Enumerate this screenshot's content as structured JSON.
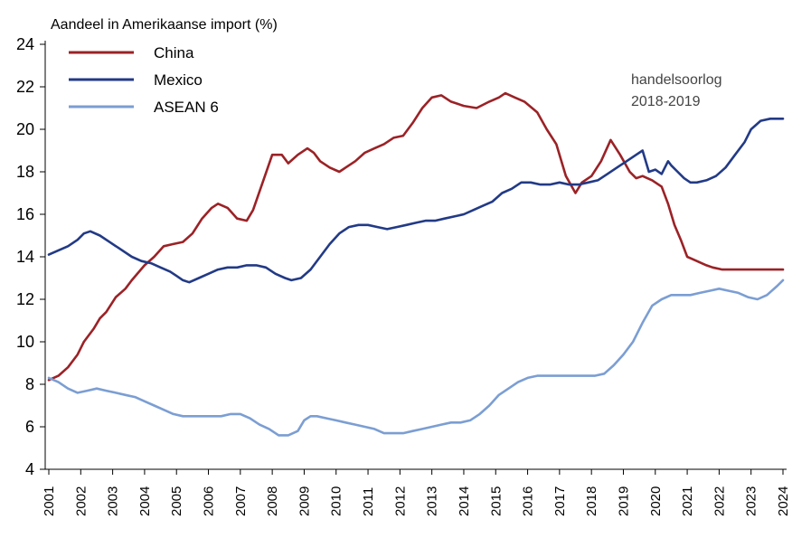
{
  "chart_data": {
    "type": "line",
    "title": "",
    "ylabel": "Aandeel in Amerikaanse import (%)",
    "xlabel": "",
    "ylim": [
      4,
      24
    ],
    "xlim": [
      2001,
      2024
    ],
    "yticks": [
      4,
      6,
      8,
      10,
      12,
      14,
      16,
      18,
      20,
      22,
      24
    ],
    "xticks": [
      "2001",
      "2002",
      "2003",
      "2004",
      "2005",
      "2006",
      "2007",
      "2008",
      "2009",
      "2010",
      "2011",
      "2012",
      "2013",
      "2014",
      "2015",
      "2016",
      "2017",
      "2018",
      "2019",
      "2020",
      "2021",
      "2022",
      "2023",
      "2024"
    ],
    "legend_position": "top-left",
    "grid": false,
    "annotation": [
      "handelsoorlog",
      "2018-2019"
    ],
    "series": [
      {
        "name": "China",
        "color": "#9b2226",
        "x": [
          2001.0,
          2001.3,
          2001.6,
          2001.9,
          2002.1,
          2002.4,
          2002.6,
          2002.8,
          2003.1,
          2003.4,
          2003.6,
          2004.0,
          2004.3,
          2004.6,
          2004.9,
          2005.2,
          2005.5,
          2005.8,
          2006.1,
          2006.3,
          2006.6,
          2006.9,
          2007.2,
          2007.4,
          2007.7,
          2008.0,
          2008.3,
          2008.5,
          2008.8,
          2009.1,
          2009.3,
          2009.5,
          2009.8,
          2010.1,
          2010.3,
          2010.6,
          2010.9,
          2011.2,
          2011.5,
          2011.8,
          2012.1,
          2012.4,
          2012.7,
          2013.0,
          2013.3,
          2013.6,
          2014.0,
          2014.4,
          2014.8,
          2015.1,
          2015.3,
          2015.6,
          2015.9,
          2016.3,
          2016.6,
          2016.9,
          2017.2,
          2017.5,
          2017.7,
          2018.0,
          2018.3,
          2018.6,
          2018.9,
          2019.2,
          2019.4,
          2019.6,
          2019.9,
          2020.2,
          2020.4,
          2020.6,
          2020.8,
          2021.0,
          2021.3,
          2021.6,
          2021.8,
          2022.1,
          2022.4,
          2022.7,
          2023.0,
          2023.3,
          2023.6,
          2023.9,
          2024.0
        ],
        "values": [
          8.2,
          8.4,
          8.8,
          9.4,
          10.0,
          10.6,
          11.1,
          11.4,
          12.1,
          12.5,
          12.9,
          13.6,
          14.0,
          14.5,
          14.6,
          14.7,
          15.1,
          15.8,
          16.3,
          16.5,
          16.3,
          15.8,
          15.7,
          16.2,
          17.5,
          18.8,
          18.8,
          18.4,
          18.8,
          19.1,
          18.9,
          18.5,
          18.2,
          18.0,
          18.2,
          18.5,
          18.9,
          19.1,
          19.3,
          19.6,
          19.7,
          20.3,
          21.0,
          21.5,
          21.6,
          21.3,
          21.1,
          21.0,
          21.3,
          21.5,
          21.7,
          21.5,
          21.3,
          20.8,
          20.0,
          19.3,
          17.8,
          17.0,
          17.5,
          17.8,
          18.5,
          19.5,
          18.8,
          18.0,
          17.7,
          17.8,
          17.6,
          17.3,
          16.5,
          15.5,
          14.8,
          14.0,
          13.8,
          13.6,
          13.5,
          13.4,
          13.4,
          13.4,
          13.4,
          13.4,
          13.4,
          13.4,
          13.4
        ]
      },
      {
        "name": "Mexico",
        "color": "#223a86",
        "x": [
          2001.0,
          2001.3,
          2001.6,
          2001.9,
          2002.1,
          2002.3,
          2002.6,
          2002.9,
          2003.2,
          2003.6,
          2003.9,
          2004.2,
          2004.5,
          2004.8,
          2005.0,
          2005.2,
          2005.4,
          2005.7,
          2006.0,
          2006.3,
          2006.6,
          2006.9,
          2007.2,
          2007.5,
          2007.8,
          2008.1,
          2008.4,
          2008.6,
          2008.9,
          2009.2,
          2009.5,
          2009.8,
          2010.1,
          2010.4,
          2010.7,
          2011.0,
          2011.3,
          2011.6,
          2011.9,
          2012.2,
          2012.5,
          2012.8,
          2013.1,
          2013.4,
          2013.7,
          2014.0,
          2014.3,
          2014.6,
          2014.9,
          2015.2,
          2015.5,
          2015.8,
          2016.1,
          2016.4,
          2016.7,
          2017.0,
          2017.3,
          2017.6,
          2017.9,
          2018.2,
          2018.5,
          2018.8,
          2019.1,
          2019.4,
          2019.6,
          2019.8,
          2020.0,
          2020.2,
          2020.4,
          2020.5,
          2020.7,
          2020.9,
          2021.1,
          2021.3,
          2021.6,
          2021.9,
          2022.2,
          2022.5,
          2022.8,
          2023.0,
          2023.3,
          2023.6,
          2023.9,
          2024.0
        ],
        "values": [
          14.1,
          14.3,
          14.5,
          14.8,
          15.1,
          15.2,
          15.0,
          14.7,
          14.4,
          14.0,
          13.8,
          13.7,
          13.5,
          13.3,
          13.1,
          12.9,
          12.8,
          13.0,
          13.2,
          13.4,
          13.5,
          13.5,
          13.6,
          13.6,
          13.5,
          13.2,
          13.0,
          12.9,
          13.0,
          13.4,
          14.0,
          14.6,
          15.1,
          15.4,
          15.5,
          15.5,
          15.4,
          15.3,
          15.4,
          15.5,
          15.6,
          15.7,
          15.7,
          15.8,
          15.9,
          16.0,
          16.2,
          16.4,
          16.6,
          17.0,
          17.2,
          17.5,
          17.5,
          17.4,
          17.4,
          17.5,
          17.4,
          17.4,
          17.5,
          17.6,
          17.9,
          18.2,
          18.5,
          18.8,
          19.0,
          18.0,
          18.1,
          17.9,
          18.5,
          18.3,
          18.0,
          17.7,
          17.5,
          17.5,
          17.6,
          17.8,
          18.2,
          18.8,
          19.4,
          20.0,
          20.4,
          20.5,
          20.5,
          20.5
        ]
      },
      {
        "name": "ASEAN 6",
        "color": "#7b9ed3",
        "x": [
          2001.0,
          2001.3,
          2001.6,
          2001.9,
          2002.2,
          2002.5,
          2002.8,
          2003.1,
          2003.4,
          2003.7,
          2004.0,
          2004.3,
          2004.6,
          2004.9,
          2005.2,
          2005.5,
          2005.8,
          2006.1,
          2006.4,
          2006.7,
          2007.0,
          2007.3,
          2007.6,
          2007.9,
          2008.2,
          2008.5,
          2008.8,
          2009.0,
          2009.2,
          2009.4,
          2009.7,
          2010.0,
          2010.3,
          2010.6,
          2010.9,
          2011.2,
          2011.5,
          2011.8,
          2012.1,
          2012.4,
          2012.7,
          2013.0,
          2013.3,
          2013.6,
          2013.9,
          2014.2,
          2014.5,
          2014.8,
          2015.1,
          2015.4,
          2015.7,
          2016.0,
          2016.3,
          2016.6,
          2016.9,
          2017.2,
          2017.5,
          2017.8,
          2018.1,
          2018.4,
          2018.7,
          2019.0,
          2019.3,
          2019.6,
          2019.9,
          2020.2,
          2020.5,
          2020.8,
          2021.1,
          2021.4,
          2021.7,
          2022.0,
          2022.3,
          2022.6,
          2022.9,
          2023.2,
          2023.5,
          2023.8,
          2024.0
        ],
        "values": [
          8.3,
          8.1,
          7.8,
          7.6,
          7.7,
          7.8,
          7.7,
          7.6,
          7.5,
          7.4,
          7.2,
          7.0,
          6.8,
          6.6,
          6.5,
          6.5,
          6.5,
          6.5,
          6.5,
          6.6,
          6.6,
          6.4,
          6.1,
          5.9,
          5.6,
          5.6,
          5.8,
          6.3,
          6.5,
          6.5,
          6.4,
          6.3,
          6.2,
          6.1,
          6.0,
          5.9,
          5.7,
          5.7,
          5.7,
          5.8,
          5.9,
          6.0,
          6.1,
          6.2,
          6.2,
          6.3,
          6.6,
          7.0,
          7.5,
          7.8,
          8.1,
          8.3,
          8.4,
          8.4,
          8.4,
          8.4,
          8.4,
          8.4,
          8.4,
          8.5,
          8.9,
          9.4,
          10.0,
          10.9,
          11.7,
          12.0,
          12.2,
          12.2,
          12.2,
          12.3,
          12.4,
          12.5,
          12.4,
          12.3,
          12.1,
          12.0,
          12.2,
          12.6,
          12.9
        ]
      }
    ]
  }
}
